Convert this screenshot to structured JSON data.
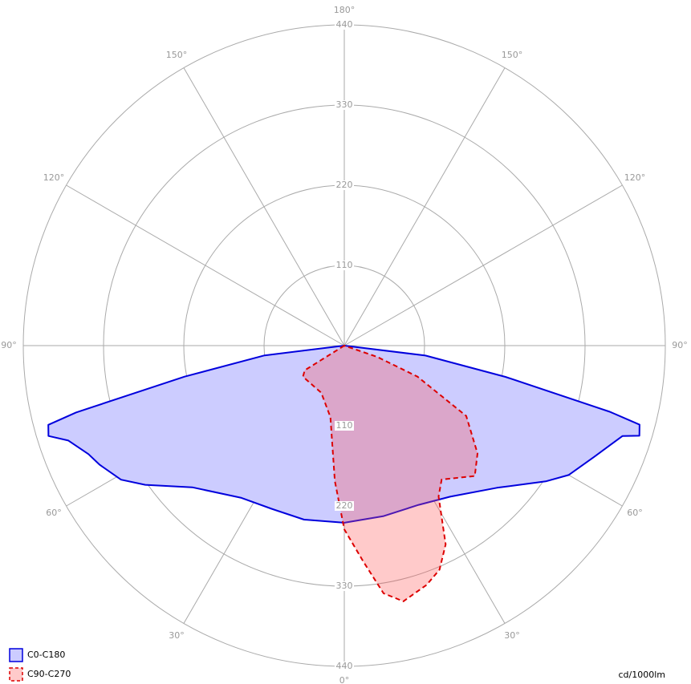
{
  "chart_data": {
    "type": "polar",
    "unit_label": "cd/1000lm",
    "rlim": [
      0,
      440
    ],
    "rticks": [
      110,
      220,
      330,
      440
    ],
    "angle_ticks": [
      {
        "value": 0,
        "label": "0°"
      },
      {
        "value": 30,
        "label": "30°"
      },
      {
        "value": 60,
        "label": "60°"
      },
      {
        "value": 90,
        "label": "90°"
      },
      {
        "value": 120,
        "label": "120°"
      },
      {
        "value": 150,
        "label": "150°"
      },
      {
        "value": 180,
        "label": "180°"
      }
    ],
    "series": [
      {
        "name": "C0-C180",
        "color": "#0000dd",
        "fill": "#ccccff",
        "dashed": false,
        "x": [
          -90,
          -83,
          -79,
          -76,
          -75,
          -73,
          -71,
          -67,
          -64,
          -59,
          -55,
          -47,
          -34,
          -24,
          -13,
          0,
          13,
          25,
          35,
          47,
          56,
          60,
          66,
          72,
          73,
          75,
          76,
          79,
          83,
          90
        ],
        "values": [
          0,
          110,
          223,
          379,
          420,
          424,
          400,
          381,
          373,
          357,
          333,
          285,
          252,
          245,
          245,
          243,
          240,
          241,
          253,
          286,
          333,
          355,
          375,
          401,
          423,
          419,
          375,
          225,
          112,
          0
        ]
      },
      {
        "name": "C90-C270",
        "color": "#dd0000",
        "fill": "rgba(255,80,80,0.3)",
        "dashed": true,
        "x": [
          -60,
          -58,
          -53,
          -26,
          -11,
          -4,
          0,
          5,
          9,
          13,
          19,
          23,
          27,
          32,
          36,
          45,
          51,
          60,
          67,
          71,
          80
        ],
        "values": [
          0,
          64,
          71,
          72,
          100,
          186,
          252,
          297,
          344,
          360,
          347,
          334,
          306,
          244,
          227,
          253,
          235,
          193,
          109,
          48,
          0
        ]
      }
    ]
  }
}
